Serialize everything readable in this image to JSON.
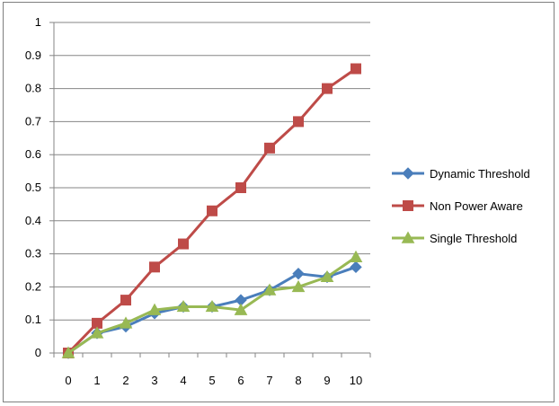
{
  "chart_data": {
    "type": "line",
    "title": "",
    "xlabel": "",
    "ylabel": "",
    "x": [
      0,
      1,
      2,
      3,
      4,
      5,
      6,
      7,
      8,
      9,
      10
    ],
    "ylim": [
      0,
      1
    ],
    "yticks": [
      0,
      0.1,
      0.2,
      0.3,
      0.4,
      0.5,
      0.6,
      0.7,
      0.8,
      0.9,
      1
    ],
    "ytick_labels": [
      "0",
      "0.1",
      "0.2",
      "0.3",
      "0.4",
      "0.5",
      "0.6",
      "0.7",
      "0.8",
      "0.9",
      "1"
    ],
    "xtick_labels": [
      "0",
      "1",
      "2",
      "3",
      "4",
      "5",
      "6",
      "7",
      "8",
      "9",
      "10"
    ],
    "grid": "horizontal",
    "legend_position": "right",
    "series": [
      {
        "name": "Dynamic Threshold",
        "color": "#4a7ebb",
        "marker": "diamond",
        "values": [
          0,
          0.06,
          0.08,
          0.12,
          0.14,
          0.14,
          0.16,
          0.19,
          0.24,
          0.23,
          0.26
        ]
      },
      {
        "name": "Non Power Aware",
        "color": "#be4b48",
        "marker": "square",
        "values": [
          0,
          0.09,
          0.16,
          0.26,
          0.33,
          0.43,
          0.5,
          0.62,
          0.7,
          0.8,
          0.86
        ]
      },
      {
        "name": "Single Threshold",
        "color": "#98b954",
        "marker": "triangle",
        "values": [
          0,
          0.06,
          0.09,
          0.13,
          0.14,
          0.14,
          0.13,
          0.19,
          0.2,
          0.23,
          0.29
        ]
      }
    ]
  }
}
